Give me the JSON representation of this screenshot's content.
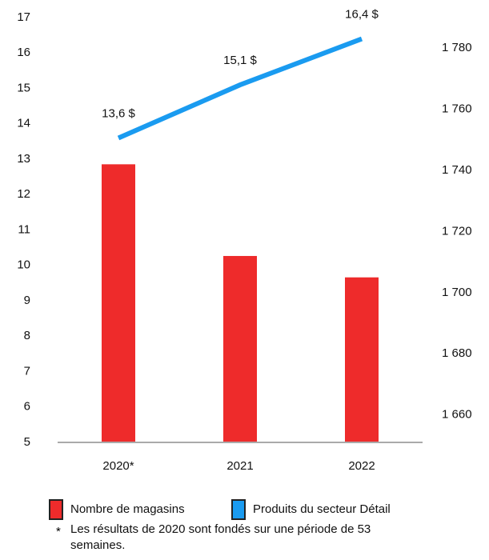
{
  "chart_data": {
    "type": "combo",
    "categories": [
      "2020*",
      "2021",
      "2022"
    ],
    "series": [
      {
        "name": "Nombre de magasins",
        "type": "bar",
        "axis": "y2",
        "color": "#ee2b2b",
        "values": [
          1742,
          1712,
          1705
        ]
      },
      {
        "name": "Produits du secteur Détail",
        "type": "line",
        "axis": "y",
        "color": "#1a9bf0",
        "values": [
          13.6,
          15.1,
          16.4
        ],
        "value_labels": [
          "13,6 $",
          "15,1 $",
          "16,4 $"
        ]
      }
    ],
    "ylim": [
      5,
      17
    ],
    "yticks": [
      5,
      6,
      7,
      8,
      9,
      10,
      11,
      12,
      13,
      14,
      15,
      16,
      17
    ],
    "y2lim": [
      1651,
      1790
    ],
    "y2ticks": [
      {
        "value": 1660,
        "label": "1 660"
      },
      {
        "value": 1680,
        "label": "1 680"
      },
      {
        "value": 1700,
        "label": "1 700"
      },
      {
        "value": 1720,
        "label": "1 720"
      },
      {
        "value": 1740,
        "label": "1 740"
      },
      {
        "value": 1760,
        "label": "1 760"
      },
      {
        "value": 1780,
        "label": "1 780"
      }
    ],
    "grid": false,
    "legend": "bottom",
    "note_marker": "*",
    "note": "Les résultats de 2020 sont fondés sur une période de 53 semaines."
  }
}
